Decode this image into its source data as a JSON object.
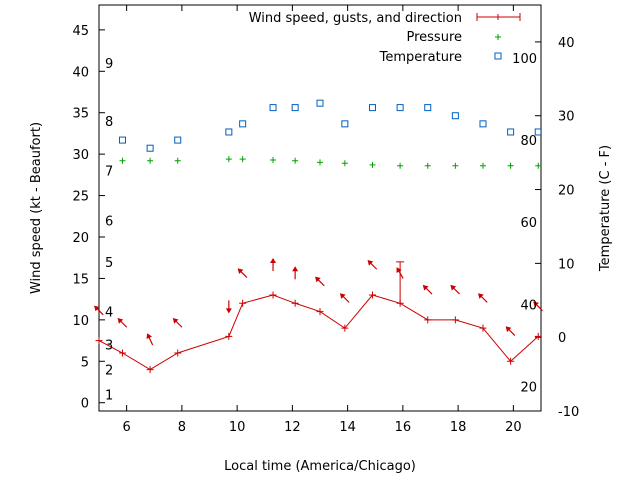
{
  "chart_data": {
    "type": "line",
    "xlabel": "Local time (America/Chicago)",
    "ylabel_left": "Wind speed (kt - Beaufort)",
    "ylabel_right": "Temperature (C - F)",
    "xlim": [
      5,
      21
    ],
    "ylim_left": [
      -1,
      48
    ],
    "ylim_right": [
      -10,
      45
    ],
    "x_ticks": [
      6,
      8,
      10,
      12,
      14,
      16,
      18,
      20
    ],
    "y_left_ticks": [
      0,
      5,
      10,
      15,
      20,
      25,
      30,
      35,
      40,
      45
    ],
    "y_right_ticks": [
      -10,
      0,
      10,
      20,
      30,
      40
    ],
    "beaufort_labels": [
      {
        "label": "1",
        "kt": 1
      },
      {
        "label": "2",
        "kt": 4
      },
      {
        "label": "3",
        "kt": 7
      },
      {
        "label": "4",
        "kt": 11
      },
      {
        "label": "5",
        "kt": 17
      },
      {
        "label": "6",
        "kt": 22
      },
      {
        "label": "7",
        "kt": 28
      },
      {
        "label": "8",
        "kt": 34
      },
      {
        "label": "9",
        "kt": 41
      }
    ],
    "fahrenheit_labels": [
      {
        "label": "20",
        "c": -6.7
      },
      {
        "label": "40",
        "c": 4.4
      },
      {
        "label": "60",
        "c": 15.6
      },
      {
        "label": "80",
        "c": 26.7
      },
      {
        "label": "100",
        "c": 37.8
      }
    ],
    "series": [
      {
        "name": "Wind speed, gusts, and direction",
        "color": "#cc0000",
        "x": [
          5,
          5.85,
          6.85,
          7.85,
          9.7,
          10.2,
          11.3,
          12.1,
          13.0,
          13.9,
          14.9,
          15.9,
          16.9,
          17.9,
          18.9,
          19.9,
          20.9
        ],
        "y": [
          7.5,
          6,
          4,
          6,
          8,
          12,
          13,
          12,
          11,
          9,
          13,
          12,
          10,
          10,
          9,
          5,
          8
        ],
        "gusts": [
          {
            "x": 15.9,
            "y": 17
          }
        ],
        "direction_from_deg": [
          135,
          135,
          155,
          135,
          0,
          135,
          180,
          180,
          135,
          135,
          135,
          150,
          135,
          135,
          135,
          135,
          135
        ]
      },
      {
        "name": "Pressure",
        "color": "#00a000",
        "x": [
          5.85,
          6.85,
          7.85,
          9.7,
          10.2,
          11.3,
          12.1,
          13.0,
          13.9,
          14.9,
          15.9,
          16.9,
          17.9,
          18.9,
          19.9,
          20.9
        ],
        "y": [
          29.2,
          29.2,
          29.2,
          29.4,
          29.4,
          29.3,
          29.2,
          29.0,
          28.9,
          28.7,
          28.6,
          28.6,
          28.6,
          28.6,
          28.6,
          28.6
        ]
      },
      {
        "name": "Temperature",
        "color": "#0060c0",
        "x": [
          5.85,
          6.85,
          7.85,
          9.7,
          10.2,
          11.3,
          12.1,
          13.0,
          13.9,
          14.9,
          15.9,
          16.9,
          17.9,
          18.9,
          19.9,
          20.9
        ],
        "y": [
          26.7,
          25.6,
          26.7,
          27.8,
          28.9,
          31.1,
          31.1,
          31.7,
          28.9,
          31.1,
          31.1,
          31.1,
          30.0,
          28.9,
          27.8,
          27.8
        ]
      }
    ]
  }
}
